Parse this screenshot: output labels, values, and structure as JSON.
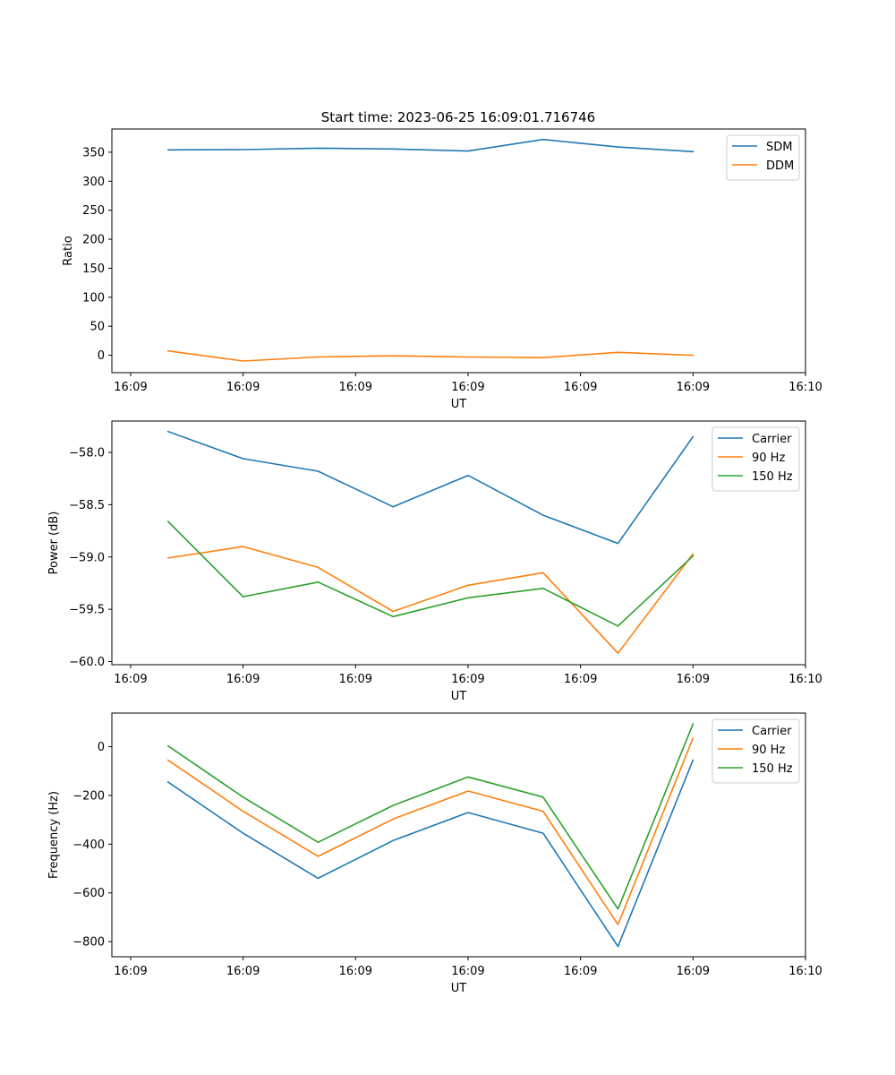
{
  "figure_title": "Start time: 2023-06-25 16:09:01.716746",
  "colors": {
    "blue": "#1f77b4",
    "orange": "#ff7f0e",
    "green": "#2ca02c"
  },
  "chart_data": [
    {
      "type": "line",
      "title": "Start time: 2023-06-25 16:09:01.716746",
      "xlabel": "UT",
      "ylabel": "Ratio",
      "x_tick_labels": [
        "16:09",
        "16:09",
        "16:09",
        "16:09",
        "16:09",
        "16:09",
        "16:10"
      ],
      "x": [
        1,
        2,
        3,
        4,
        5,
        6,
        7,
        8
      ],
      "xlim": [
        0.25,
        9.5
      ],
      "ylim": [
        -30,
        390
      ],
      "y_ticks": [
        0,
        50,
        100,
        150,
        200,
        250,
        300,
        350
      ],
      "y_tick_labels": [
        "0",
        "50",
        "100",
        "150",
        "200",
        "250",
        "300",
        "350"
      ],
      "legend_position": "top-right",
      "grid": false,
      "series": [
        {
          "name": "SDM",
          "color": "#1f77b4",
          "values": [
            354,
            354.5,
            357,
            355.5,
            352,
            372,
            359,
            351
          ]
        },
        {
          "name": "DDM",
          "color": "#ff7f0e",
          "values": [
            7.5,
            -10,
            -3,
            -1,
            -3,
            -4,
            5,
            0
          ]
        }
      ]
    },
    {
      "type": "line",
      "title": "",
      "xlabel": "UT",
      "ylabel": "Power (dB)",
      "x_tick_labels": [
        "16:09",
        "16:09",
        "16:09",
        "16:09",
        "16:09",
        "16:09",
        "16:10"
      ],
      "x": [
        1,
        2,
        3,
        4,
        5,
        6,
        7,
        8
      ],
      "xlim": [
        0.25,
        9.5
      ],
      "ylim": [
        -60.03,
        -57.7
      ],
      "y_ticks": [
        -60.0,
        -59.5,
        -59.0,
        -58.5,
        -58.0
      ],
      "y_tick_labels": [
        "−60.0",
        "−59.5",
        "−59.0",
        "−58.5",
        "−58.0"
      ],
      "legend_position": "top-right",
      "grid": false,
      "series": [
        {
          "name": "Carrier",
          "color": "#1f77b4",
          "values": [
            -57.8,
            -58.06,
            -58.18,
            -58.52,
            -58.22,
            -58.6,
            -58.87,
            -57.85
          ]
        },
        {
          "name": "90 Hz",
          "color": "#ff7f0e",
          "values": [
            -59.01,
            -58.9,
            -59.1,
            -59.52,
            -59.27,
            -59.15,
            -59.92,
            -58.97
          ]
        },
        {
          "name": "150 Hz",
          "color": "#2ca02c",
          "values": [
            -58.66,
            -59.38,
            -59.24,
            -59.57,
            -59.39,
            -59.3,
            -59.66,
            -58.99
          ]
        }
      ]
    },
    {
      "type": "line",
      "title": "",
      "xlabel": "UT",
      "ylabel": "Frequency (Hz)",
      "x_tick_labels": [
        "16:09",
        "16:09",
        "16:09",
        "16:09",
        "16:09",
        "16:09",
        "16:10"
      ],
      "x": [
        1,
        2,
        3,
        4,
        5,
        6,
        7,
        8
      ],
      "xlim": [
        0.25,
        9.5
      ],
      "ylim": [
        -862,
        138
      ],
      "y_ticks": [
        -800,
        -600,
        -400,
        -200,
        0
      ],
      "y_tick_labels": [
        "−800",
        "−600",
        "−400",
        "−200",
        "0"
      ],
      "legend_position": "top-right",
      "grid": false,
      "series": [
        {
          "name": "Carrier",
          "color": "#1f77b4",
          "values": [
            -145,
            -355,
            -540,
            -385,
            -270,
            -355,
            -820,
            -55
          ]
        },
        {
          "name": "90 Hz",
          "color": "#ff7f0e",
          "values": [
            -55,
            -265,
            -450,
            -297,
            -182,
            -265,
            -730,
            35
          ]
        },
        {
          "name": "150 Hz",
          "color": "#2ca02c",
          "values": [
            3,
            -207,
            -392,
            -241,
            -124,
            -207,
            -666,
            93
          ]
        }
      ]
    }
  ]
}
